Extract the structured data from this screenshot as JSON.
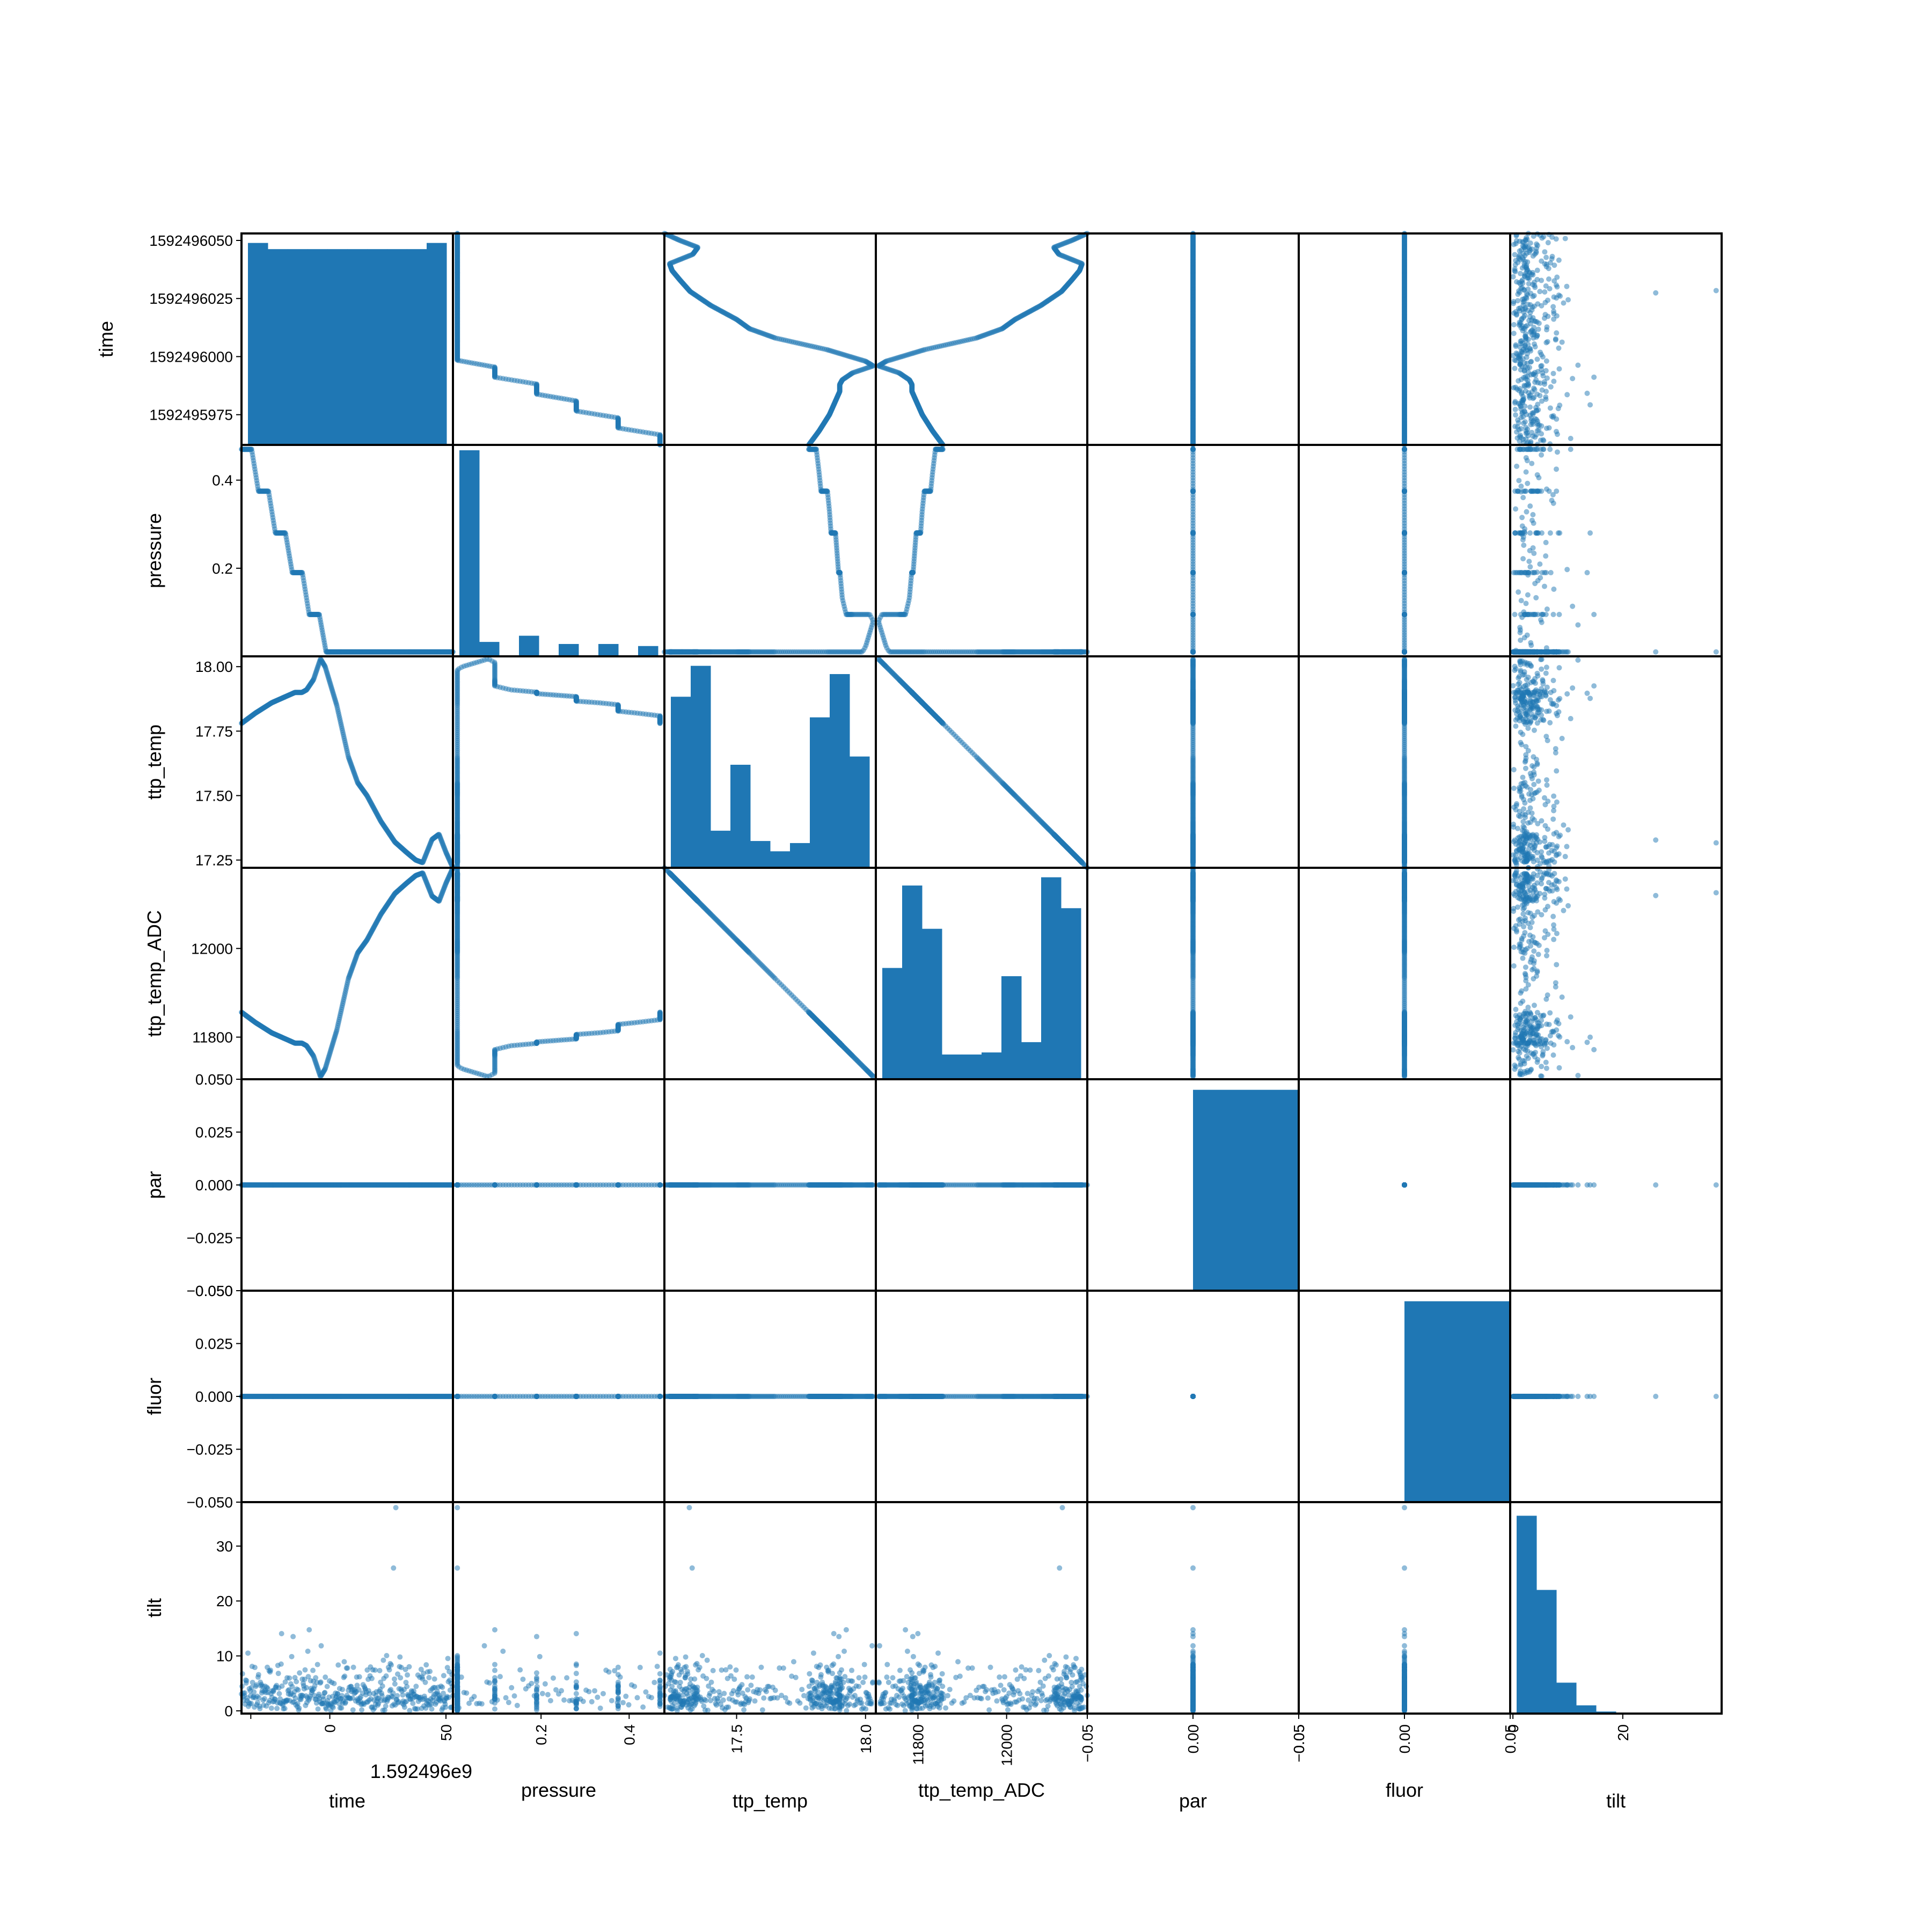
{
  "chart_data": {
    "type": "scatter_matrix",
    "variables": [
      "time",
      "pressure",
      "ttp_temp",
      "ttp_temp_ADC",
      "par",
      "fluor",
      "tilt"
    ],
    "color": "#1f77b4",
    "offset_text": "1.592496e9",
    "ranges": {
      "time": [
        1592495962,
        1592496053
      ],
      "pressure": [
        0.0,
        0.48
      ],
      "ttp_temp": [
        17.22,
        18.04
      ],
      "ttp_temp_ADC": [
        11705,
        12182
      ],
      "par": [
        -0.05,
        0.05
      ],
      "fluor": [
        -0.05,
        0.05
      ],
      "tilt": [
        -0.5,
        38
      ]
    },
    "x_ticks": {
      "time": {
        "values": [
          -34,
          0,
          50
        ],
        "labels": [
          "",
          "0",
          "50"
        ]
      },
      "pressure": {
        "values": [
          0.2,
          0.4
        ],
        "labels": [
          "0.2",
          "0.4"
        ]
      },
      "ttp_temp": {
        "values": [
          17.5,
          18.0
        ],
        "labels": [
          "17.5",
          "18.0"
        ]
      },
      "ttp_temp_ADC": {
        "values": [
          11800,
          12000
        ],
        "labels": [
          "11800",
          "12000"
        ]
      },
      "par": {
        "values": [
          -0.05,
          0.0,
          0.05
        ],
        "labels": [
          "−0.05",
          "0.00",
          "0.05"
        ]
      },
      "fluor": {
        "values": [
          -0.05,
          0.0,
          0.05
        ],
        "labels": [
          "−0.05",
          "0.00",
          "0.05"
        ]
      },
      "tilt": {
        "values": [
          0,
          20
        ],
        "labels": [
          "0",
          "20"
        ]
      }
    },
    "y_ticks": {
      "time": {
        "values": [
          1592495975,
          1592496000,
          1592496025,
          1592496050
        ],
        "labels": [
          "1592495975",
          "1592496000",
          "1592496025",
          "1592496050"
        ]
      },
      "pressure": {
        "values": [
          0.2,
          0.4
        ],
        "labels": [
          "0.2",
          "0.4"
        ]
      },
      "ttp_temp": {
        "values": [
          17.25,
          17.5,
          17.75,
          18.0
        ],
        "labels": [
          "17.25",
          "17.50",
          "17.75",
          "18.00"
        ]
      },
      "ttp_temp_ADC": {
        "values": [
          11800,
          12000
        ],
        "labels": [
          "11800",
          "12000"
        ]
      },
      "par": {
        "values": [
          -0.05,
          -0.025,
          0.0,
          0.025,
          0.05
        ],
        "labels": [
          "−0.050",
          "−0.025",
          "0.000",
          "0.025",
          "0.050"
        ]
      },
      "fluor": {
        "values": [
          -0.05,
          -0.025,
          0.0,
          0.025,
          0.05
        ],
        "labels": [
          "−0.050",
          "−0.025",
          "0.000",
          "0.025",
          "0.050"
        ]
      },
      "tilt": {
        "values": [
          0,
          10,
          20,
          30
        ],
        "labels": [
          "0",
          "10",
          "20",
          "30"
        ]
      }
    },
    "histograms": {
      "time": [
        0.98,
        0.95,
        0.95,
        0.95,
        0.95,
        0.95,
        0.95,
        0.95,
        0.95,
        0.98
      ],
      "pressure": [
        1.0,
        0.07,
        0.0,
        0.1,
        0.0,
        0.06,
        0.0,
        0.06,
        0.0,
        0.05
      ],
      "ttp_temp": [
        0.83,
        0.98,
        0.18,
        0.5,
        0.13,
        0.08,
        0.12,
        0.73,
        0.94,
        0.54
      ],
      "ttp_temp_ADC": [
        0.54,
        0.94,
        0.73,
        0.12,
        0.12,
        0.13,
        0.5,
        0.18,
        0.98,
        0.83
      ],
      "par": [
        0,
        0,
        0,
        0,
        0,
        0,
        0,
        0,
        0,
        0
      ],
      "fluor": [
        0,
        0,
        0,
        0,
        0,
        0,
        0,
        0,
        0,
        0
      ],
      "tilt": [
        0.96,
        0.6,
        0.15,
        0.04,
        0.01,
        0.0,
        0.0,
        0.0,
        0.0,
        0.0
      ]
    },
    "single_value_bar": {
      "par": 0.0,
      "fluor": 0.0
    },
    "pressure_steps": [
      0.47,
      0.375,
      0.28,
      0.19,
      0.095,
      0.01
    ],
    "temp_profile": {
      "time": [
        1592495962,
        1592495968,
        1592495975,
        1592495980,
        1592495985,
        1592495988,
        1592495990,
        1592495993,
        1592495996,
        1592495998,
        1592496003,
        1592496008,
        1592496012,
        1592496016,
        1592496022,
        1592496028,
        1592496033,
        1592496037,
        1592496040,
        1592496044,
        1592496047,
        1592496050,
        1592496053
      ],
      "ttp_temp": [
        17.78,
        17.82,
        17.86,
        17.88,
        17.9,
        17.9,
        17.91,
        17.95,
        18.03,
        18.0,
        17.85,
        17.65,
        17.55,
        17.5,
        17.4,
        17.32,
        17.28,
        17.25,
        17.24,
        17.33,
        17.35,
        17.28,
        17.22
      ]
    },
    "tilt_outliers": [
      26,
      37
    ]
  }
}
